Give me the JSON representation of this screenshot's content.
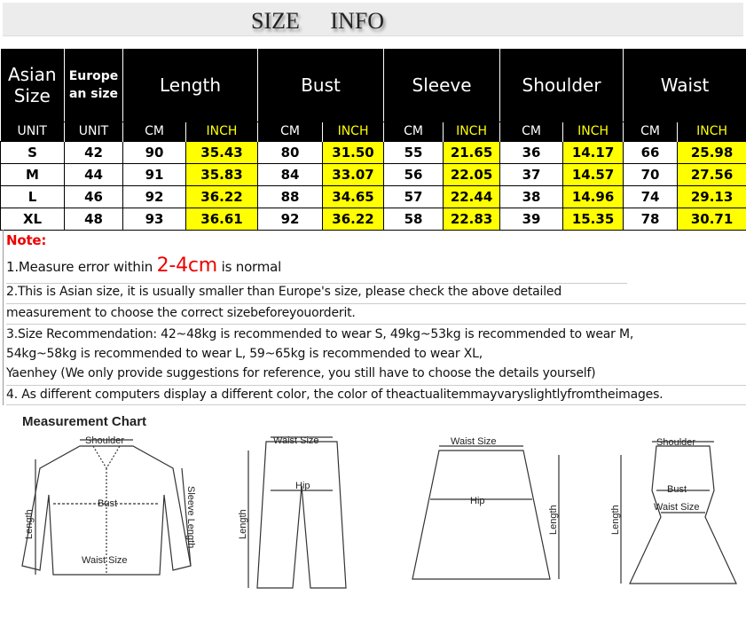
{
  "banner": {
    "title": "SIZE INFO"
  },
  "table": {
    "headers": [
      "Asian Size",
      "Europe an size",
      "Length",
      "Bust",
      "Sleeve",
      "Shoulder",
      "Waist"
    ],
    "units": [
      "UNIT",
      "UNIT",
      "CM",
      "INCH",
      "CM",
      "INCH",
      "CM",
      "INCH",
      "CM",
      "INCH",
      "CM",
      "INCH"
    ],
    "rows": [
      [
        "S",
        "42",
        "90",
        "35.43",
        "80",
        "31.50",
        "55",
        "21.65",
        "36",
        "14.17",
        "66",
        "25.98"
      ],
      [
        "M",
        "44",
        "91",
        "35.83",
        "84",
        "33.07",
        "56",
        "22.05",
        "37",
        "14.57",
        "70",
        "27.56"
      ],
      [
        "L",
        "46",
        "92",
        "36.22",
        "88",
        "34.65",
        "57",
        "22.44",
        "38",
        "14.96",
        "74",
        "29.13"
      ],
      [
        "XL",
        "48",
        "93",
        "36.61",
        "92",
        "36.22",
        "58",
        "22.83",
        "39",
        "15.35",
        "78",
        "30.71"
      ]
    ],
    "highlight_color": "#ffff00"
  },
  "notes": {
    "title": "Note:",
    "n1a": "1.Measure error within ",
    "n1b": "2-4cm",
    "n1c": " is normal",
    "n2a": "2.This is Asian size, it is usually smaller than Europe's size, please check the above detailed",
    "n2b": "measurement to choose the correct sizebeforeyouorderit.",
    "n3a": "3.Size Recommendation:   42~48kg is recommended to wear S, 49kg~53kg is recommended to wear M,",
    "n3b": "54kg~58kg is recommended to wear L, 59~65kg is recommended to wear XL,",
    "n3c": "Yaenhey (We only provide suggestions for reference, you still have to choose the details yourself)",
    "n4": "4. As different computers display a different color, the color of theactualitemmayvaryslightlyfromtheimages."
  },
  "chart": {
    "title": "Measurement Chart",
    "shirt": {
      "shoulder": "Shoulder",
      "sleeve": "Sleeve Length",
      "bust": "Bust",
      "length": "Length",
      "waist": "Waist Size"
    },
    "pants": {
      "waist": "Waist Size",
      "hip": "Hip",
      "length": "Length"
    },
    "skirt": {
      "waist": "Waist Size",
      "hip": "Hip",
      "length": "Length"
    },
    "dress": {
      "shoulder": "Shoulder",
      "bust": "Bust",
      "waist": "Waist Size",
      "length": "Length"
    }
  }
}
